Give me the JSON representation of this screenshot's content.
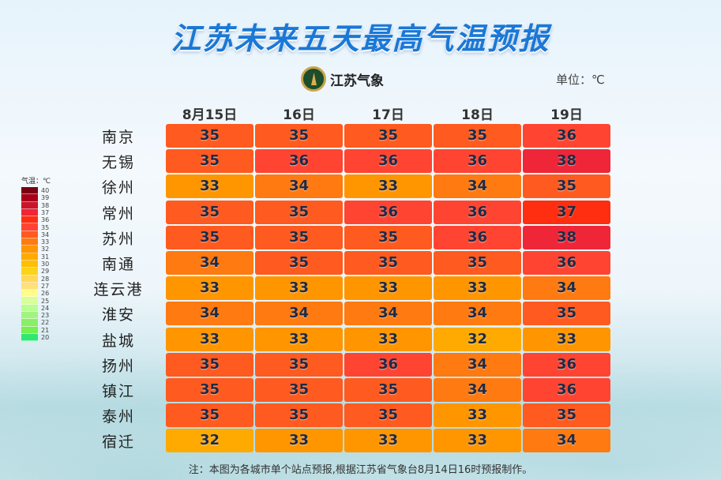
{
  "title": "江苏未来五天最高气温预报",
  "logo_text": "江苏气象",
  "unit": "单位：℃",
  "dates": [
    "8月15日",
    "16日",
    "17日",
    "18日",
    "19日"
  ],
  "cities": [
    "南京",
    "无锡",
    "徐州",
    "常州",
    "苏州",
    "南通",
    "连云港",
    "淮安",
    "盐城",
    "扬州",
    "镇江",
    "泰州",
    "宿迁"
  ],
  "temps": [
    [
      35,
      35,
      35,
      35,
      36
    ],
    [
      35,
      36,
      36,
      36,
      38
    ],
    [
      33,
      34,
      33,
      34,
      35
    ],
    [
      35,
      35,
      36,
      36,
      37
    ],
    [
      35,
      35,
      35,
      36,
      38
    ],
    [
      34,
      35,
      35,
      35,
      36
    ],
    [
      33,
      33,
      33,
      33,
      34
    ],
    [
      34,
      34,
      34,
      34,
      35
    ],
    [
      33,
      33,
      33,
      32,
      33
    ],
    [
      35,
      35,
      36,
      34,
      36
    ],
    [
      35,
      35,
      35,
      34,
      36
    ],
    [
      35,
      35,
      35,
      33,
      35
    ],
    [
      32,
      33,
      33,
      33,
      34
    ]
  ],
  "colors": {
    "32": "#ffaa00",
    "33": "#ff9600",
    "34": "#ff7a10",
    "35": "#ff5a1f",
    "36": "#ff4532",
    "37": "#ff2e10",
    "38": "#ee2638"
  },
  "legend": {
    "title": "气温：℃",
    "values": [
      40,
      39,
      38,
      37,
      36,
      35,
      34,
      33,
      32,
      31,
      30,
      29,
      28,
      27,
      26,
      25,
      24,
      23,
      22,
      21,
      20
    ],
    "swatches": [
      "#7a0010",
      "#a8001a",
      "#cc1428",
      "#ee2638",
      "#ff2e10",
      "#ff4532",
      "#ff5a1f",
      "#ff7a10",
      "#ff9600",
      "#ffaa00",
      "#ffbf00",
      "#ffd21a",
      "#ffd85a",
      "#ffe07a",
      "#fffc8a",
      "#d8ff9a",
      "#b8ff90",
      "#a0f580",
      "#8aee6a",
      "#74f050",
      "#2ee870"
    ]
  },
  "note": "注：本图为各城市单个站点预报,根据江苏省气象台8月14日16时预报制作。"
}
